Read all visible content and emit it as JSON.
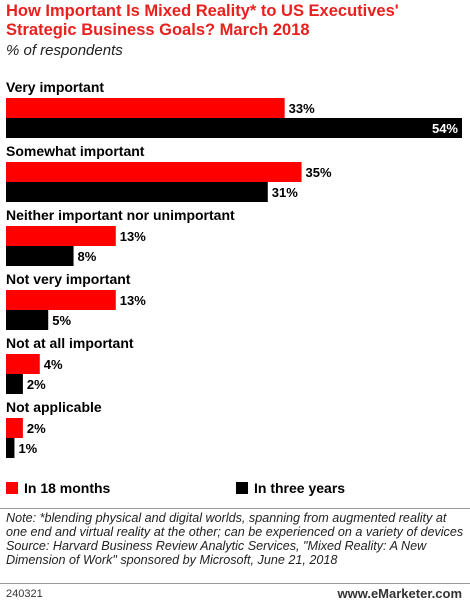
{
  "title": "How Important Is Mixed Reality* to US Executives' Strategic Business Goals? March 2018",
  "subtitle": "% of respondents",
  "chart_data": {
    "type": "bar",
    "orientation": "horizontal",
    "categories": [
      "Very important",
      "Somewhat important",
      "Neither important nor unimportant",
      "Not very important",
      "Not at all important",
      "Not applicable"
    ],
    "series": [
      {
        "name": "In 18 months",
        "color": "#ff0000",
        "values": [
          33,
          35,
          13,
          13,
          4,
          2
        ],
        "labels": [
          "33%",
          "35%",
          "13%",
          "13%",
          "4%",
          "2%"
        ]
      },
      {
        "name": "In three years",
        "color": "#000000",
        "values": [
          54,
          31,
          8,
          5,
          2,
          1
        ],
        "labels": [
          "54%",
          "31%",
          "8%",
          "5%",
          "2%",
          "1%"
        ]
      }
    ],
    "xlim": [
      0,
      54
    ],
    "unit": "%",
    "grid": false,
    "legend": "bottom"
  },
  "note": "Note: *blending physical and digital worlds, spanning from augmented reality at one end and virtual reality at the other; can be experienced on a variety of devices",
  "source": "Source: Harvard Business Review Analytic Services, \"Mixed Reality: A New Dimension of Work\" sponsored by Microsoft, June 21, 2018",
  "footer": {
    "id": "240321",
    "brand": "www.eMarketer.com"
  }
}
